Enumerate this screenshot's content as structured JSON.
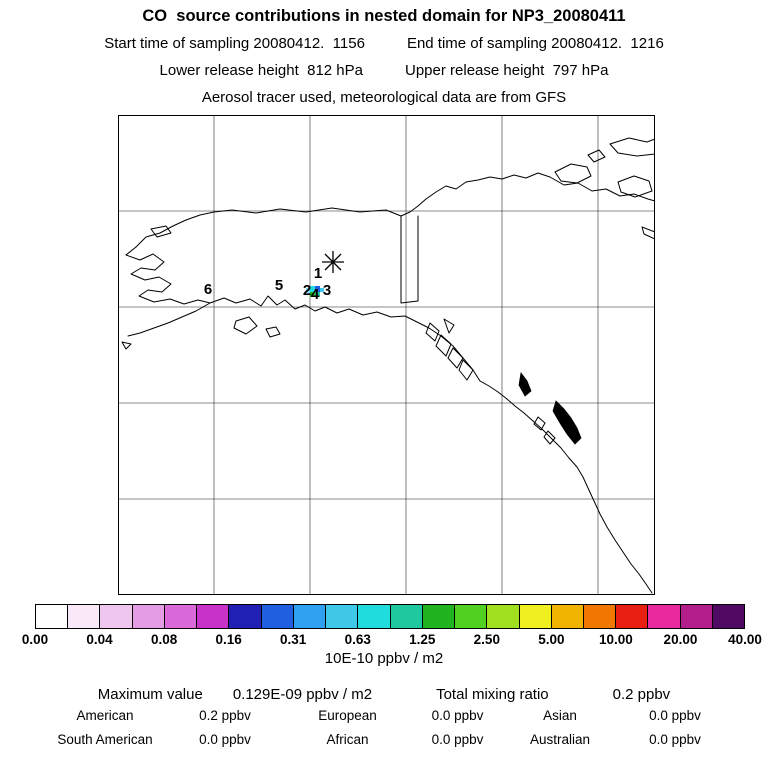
{
  "header": {
    "title": "CO  source contributions in nested domain for NP3_20080411",
    "start_time": "Start time of sampling 20080412.  1156",
    "end_time": "End time of sampling 20080412.  1216",
    "lower_release": "Lower release height  812 hPa",
    "upper_release": "Upper release height  797 hPa",
    "tracer_info": "Aerosol tracer used, meteorological data are from GFS"
  },
  "map": {
    "markers": [
      "1",
      "2",
      "3",
      "4",
      "5",
      "6"
    ],
    "sampling_marker": "asterisk-star"
  },
  "colorbar": {
    "colors": [
      "#ffffff",
      "#f8e8f8",
      "#eec6ee",
      "#e49ce4",
      "#da6ada",
      "#c832c8",
      "#2020b4",
      "#2060e0",
      "#30a0f0",
      "#40c8e8",
      "#20dcdc",
      "#20c8a0",
      "#20b420",
      "#50d020",
      "#a0e020",
      "#f0f020",
      "#f0b400",
      "#f07800",
      "#e81e10",
      "#e8289c",
      "#b41e8c",
      "#500a64"
    ],
    "tick_labels": [
      "0.00",
      "0.04",
      "0.08",
      "0.16",
      "0.31",
      "0.63",
      "1.25",
      "2.50",
      "5.00",
      "10.00",
      "20.00",
      "40.00"
    ],
    "units": "10E-10 ppbv / m2"
  },
  "stats": {
    "maximum_label": "Maximum value",
    "maximum_value": "0.129E-09 ppbv / m2",
    "total_label": "Total mixing ratio",
    "total_value": "0.2 ppbv",
    "regions": [
      {
        "name": "American",
        "value": "0.2 ppbv"
      },
      {
        "name": "European",
        "value": "0.0 ppbv"
      },
      {
        "name": "Asian",
        "value": "0.0 ppbv"
      },
      {
        "name": "South American",
        "value": "0.0 ppbv"
      },
      {
        "name": "African",
        "value": "0.0 ppbv"
      },
      {
        "name": "Australian",
        "value": "0.0 ppbv"
      }
    ]
  },
  "chart_data": {
    "type": "heatmap",
    "title": "CO source contributions in nested domain for NP3_20080411",
    "sampling": {
      "start": "20080412. 1156",
      "end": "20080412. 1216",
      "lower_release_hpa": 812,
      "upper_release_hpa": 797,
      "tracer": "Aerosol",
      "meteorology": "GFS"
    },
    "colorbar_levels": [
      0.0,
      0.04,
      0.08,
      0.16,
      0.31,
      0.63,
      1.25,
      2.5,
      5.0,
      10.0,
      20.0,
      40.0
    ],
    "colorbar_units": "10E-10 ppbv / m2",
    "maximum_value": "0.129E-09 ppbv / m2",
    "total_mixing_ratio_ppbv": 0.2,
    "source_contributions_ppbv": {
      "American": 0.2,
      "European": 0.0,
      "Asian": 0.0,
      "South American": 0.0,
      "African": 0.0,
      "Australian": 0.0
    },
    "release_point_markers": [
      "1",
      "2",
      "3",
      "4",
      "5",
      "6"
    ],
    "notes": "Small cyan/blue/green contribution patch plotted near markers 2,3,4 in interior Alaska; asterisk marks sampling location"
  }
}
